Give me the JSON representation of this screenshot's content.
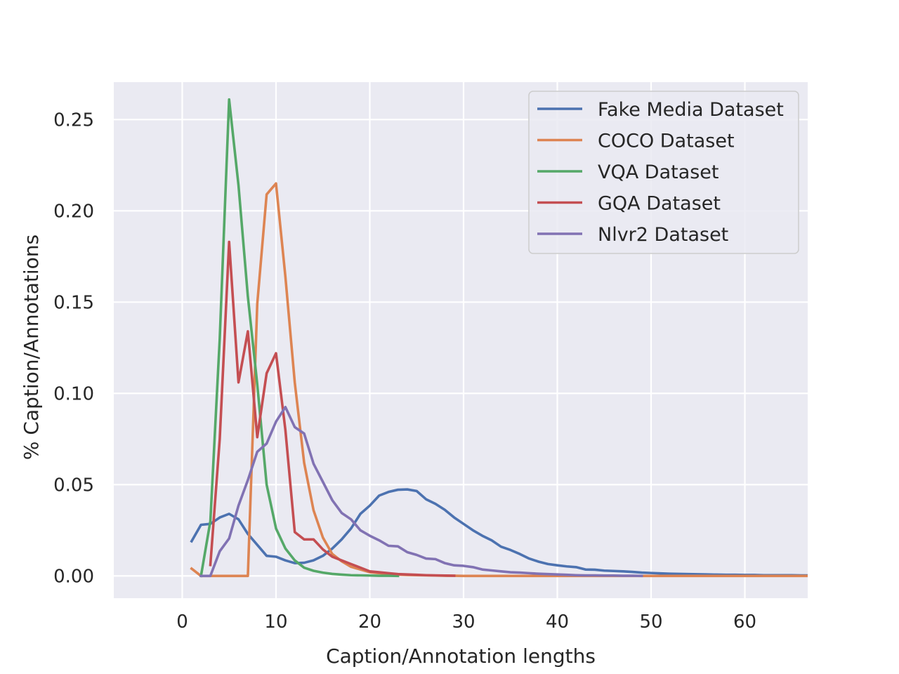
{
  "chart_data": {
    "type": "line",
    "title": "",
    "xlabel": "Caption/Annotation lengths",
    "ylabel": "% Caption/Annotations",
    "xlim": [
      -7.3,
      66.7
    ],
    "ylim": [
      -0.0122,
      0.2705
    ],
    "xticks": [
      0,
      10,
      20,
      30,
      40,
      50,
      60
    ],
    "yticks": [
      0.0,
      0.05,
      0.1,
      0.15,
      0.2,
      0.25
    ],
    "xtick_labels": [
      "0",
      "10",
      "20",
      "30",
      "40",
      "50",
      "60"
    ],
    "ytick_labels": [
      "0.00",
      "0.05",
      "0.10",
      "0.15",
      "0.20",
      "0.25"
    ],
    "grid": true,
    "legend_position": "top-right",
    "background": "#eaeaf2",
    "series": [
      {
        "name": "Fake Media Dataset",
        "color": "#4c72b0",
        "x": [
          1,
          2,
          3,
          4,
          5,
          6,
          7,
          8,
          9,
          10,
          11,
          12,
          13,
          14,
          15,
          16,
          17,
          18,
          19,
          20,
          21,
          22,
          23,
          24,
          25,
          26,
          27,
          28,
          29,
          30,
          31,
          32,
          33,
          34,
          35,
          36,
          37,
          38,
          39,
          40,
          41,
          42,
          43,
          44,
          45,
          46,
          47,
          48,
          49,
          50,
          51,
          52,
          53,
          54,
          55,
          56,
          57,
          58,
          59,
          60,
          61,
          62,
          63,
          64,
          65,
          66,
          67
        ],
        "y": [
          0.019,
          0.028,
          0.0285,
          0.032,
          0.034,
          0.031,
          0.023,
          0.017,
          0.011,
          0.0105,
          0.0085,
          0.007,
          0.0072,
          0.0085,
          0.011,
          0.015,
          0.02,
          0.026,
          0.034,
          0.0385,
          0.044,
          0.046,
          0.0472,
          0.0474,
          0.0465,
          0.042,
          0.0395,
          0.0362,
          0.032,
          0.0285,
          0.025,
          0.022,
          0.0195,
          0.016,
          0.0142,
          0.012,
          0.0095,
          0.0078,
          0.0065,
          0.0058,
          0.0052,
          0.0048,
          0.0035,
          0.0034,
          0.0029,
          0.0027,
          0.0025,
          0.0022,
          0.0018,
          0.0016,
          0.0014,
          0.0012,
          0.0011,
          0.001,
          0.0009,
          0.0008,
          0.0007,
          0.0006,
          0.0006,
          0.0005,
          0.0005,
          0.0004,
          0.0004,
          0.0004,
          0.0004,
          0.0003,
          0.0003
        ]
      },
      {
        "name": "COCO Dataset",
        "color": "#dd8452",
        "x": [
          1,
          2,
          3,
          4,
          5,
          6,
          7,
          8,
          9,
          10,
          11,
          12,
          13,
          14,
          15,
          16,
          17,
          18,
          19,
          20,
          21,
          22,
          23,
          24,
          25,
          26,
          27,
          28,
          29,
          30,
          35,
          40,
          45,
          50,
          55,
          60,
          65,
          67
        ],
        "y": [
          0.004,
          0.0,
          0.0,
          0.0,
          0.0,
          0.0,
          0.0,
          0.149,
          0.209,
          0.215,
          0.164,
          0.106,
          0.062,
          0.036,
          0.021,
          0.012,
          0.008,
          0.005,
          0.0035,
          0.002,
          0.0015,
          0.001,
          0.0007,
          0.0005,
          0.0004,
          0.0003,
          0.0002,
          0.0001,
          0.0001,
          0.0,
          0.0,
          0.0,
          0.0,
          0.0,
          0.0,
          0.0,
          0.0,
          0.0
        ]
      },
      {
        "name": "VQA Dataset",
        "color": "#55a868",
        "x": [
          2,
          3,
          4,
          5,
          6,
          7,
          8,
          9,
          10,
          11,
          12,
          13,
          14,
          15,
          16,
          17,
          18,
          19,
          20,
          21,
          22,
          23
        ],
        "y": [
          0.0,
          0.03,
          0.13,
          0.261,
          0.214,
          0.153,
          0.105,
          0.05,
          0.026,
          0.015,
          0.0085,
          0.0045,
          0.0028,
          0.0018,
          0.0011,
          0.0007,
          0.0004,
          0.0003,
          0.0002,
          0.0001,
          0.0001,
          0.0
        ]
      },
      {
        "name": "GQA Dataset",
        "color": "#c44e52",
        "x": [
          3,
          4,
          5,
          6,
          7,
          8,
          9,
          10,
          11,
          12,
          13,
          14,
          15,
          16,
          17,
          18,
          19,
          20,
          21,
          22,
          23,
          24,
          25,
          26,
          27,
          28,
          29
        ],
        "y": [
          0.006,
          0.075,
          0.183,
          0.106,
          0.134,
          0.076,
          0.111,
          0.122,
          0.08,
          0.024,
          0.02,
          0.02,
          0.0145,
          0.0105,
          0.0085,
          0.0065,
          0.0045,
          0.0025,
          0.002,
          0.0015,
          0.001,
          0.0008,
          0.0006,
          0.0004,
          0.0003,
          0.0002,
          0.0001
        ]
      },
      {
        "name": "Nlvr2 Dataset",
        "color": "#8172b3",
        "x": [
          2,
          3,
          4,
          5,
          6,
          7,
          8,
          9,
          10,
          11,
          12,
          13,
          14,
          15,
          16,
          17,
          18,
          19,
          20,
          21,
          22,
          23,
          24,
          25,
          26,
          27,
          28,
          29,
          30,
          31,
          32,
          33,
          34,
          35,
          36,
          37,
          38,
          39,
          40,
          41,
          42,
          43,
          44,
          45,
          46,
          47,
          48,
          49
        ],
        "y": [
          0.0,
          0.0,
          0.0135,
          0.0205,
          0.0385,
          0.0525,
          0.068,
          0.0725,
          0.0845,
          0.0925,
          0.0815,
          0.078,
          0.0615,
          0.0515,
          0.0415,
          0.0345,
          0.031,
          0.025,
          0.022,
          0.0195,
          0.0165,
          0.0162,
          0.013,
          0.0115,
          0.0095,
          0.0092,
          0.007,
          0.0058,
          0.0055,
          0.0048,
          0.0035,
          0.003,
          0.0025,
          0.002,
          0.0018,
          0.0015,
          0.0012,
          0.001,
          0.0008,
          0.0006,
          0.0004,
          0.0003,
          0.0003,
          0.0002,
          0.0002,
          0.0001,
          0.0001,
          0.0
        ]
      }
    ]
  }
}
